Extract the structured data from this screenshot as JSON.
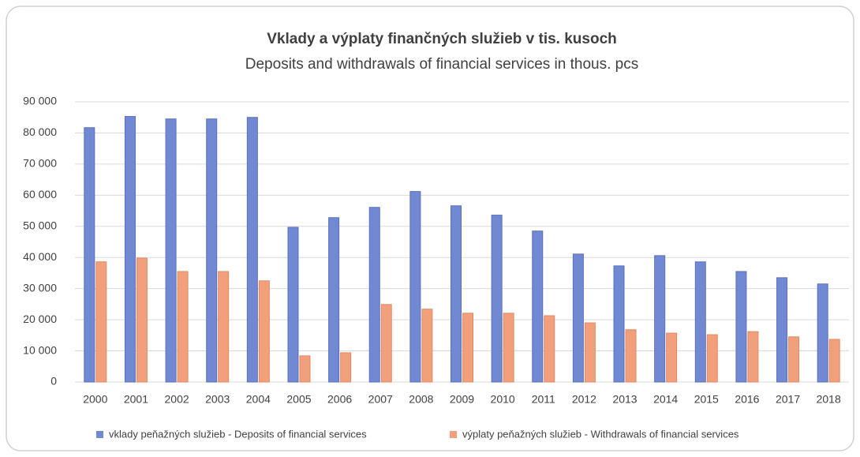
{
  "chart_data": {
    "type": "bar",
    "title": "Vklady a výplaty finančných služieb v tis. kusoch",
    "subtitle": "Deposits and withdrawals of financial services in thous. pcs",
    "categories": [
      "2000",
      "2001",
      "2002",
      "2003",
      "2004",
      "2005",
      "2006",
      "2007",
      "2008",
      "2009",
      "2010",
      "2011",
      "2012",
      "2013",
      "2014",
      "2015",
      "2016",
      "2017",
      "2018"
    ],
    "series": [
      {
        "name": "vklady peňažných služieb - Deposits of financial services",
        "color": "#7189d3",
        "values": [
          81700,
          85300,
          84500,
          84500,
          85000,
          49700,
          52800,
          56100,
          61200,
          56600,
          53600,
          48500,
          41100,
          37300,
          40600,
          38600,
          35500,
          33500,
          31500
        ]
      },
      {
        "name": "výplaty peňažných služieb - Withdrawals of financial services",
        "color": "#f2a07b",
        "values": [
          38600,
          39800,
          35500,
          35500,
          32500,
          8400,
          9400,
          24900,
          23400,
          22100,
          22100,
          21300,
          19000,
          16800,
          15700,
          15200,
          16200,
          14500,
          13700
        ]
      }
    ],
    "ylim": [
      0,
      90000
    ],
    "yticks": [
      0,
      {
        "value": 10000,
        "label": "10 000"
      },
      {
        "value": 20000,
        "label": "20 000"
      },
      {
        "value": 30000,
        "label": "30 000"
      },
      {
        "value": 40000,
        "label": "40 000"
      },
      {
        "value": 50000,
        "label": "50 000"
      },
      {
        "value": 60000,
        "label": "60 000"
      },
      {
        "value": 70000,
        "label": "70 000"
      },
      {
        "value": 80000,
        "label": "80 000"
      },
      {
        "value": 90000,
        "label": "90 000"
      }
    ],
    "grid": true,
    "legend": "bottom"
  }
}
